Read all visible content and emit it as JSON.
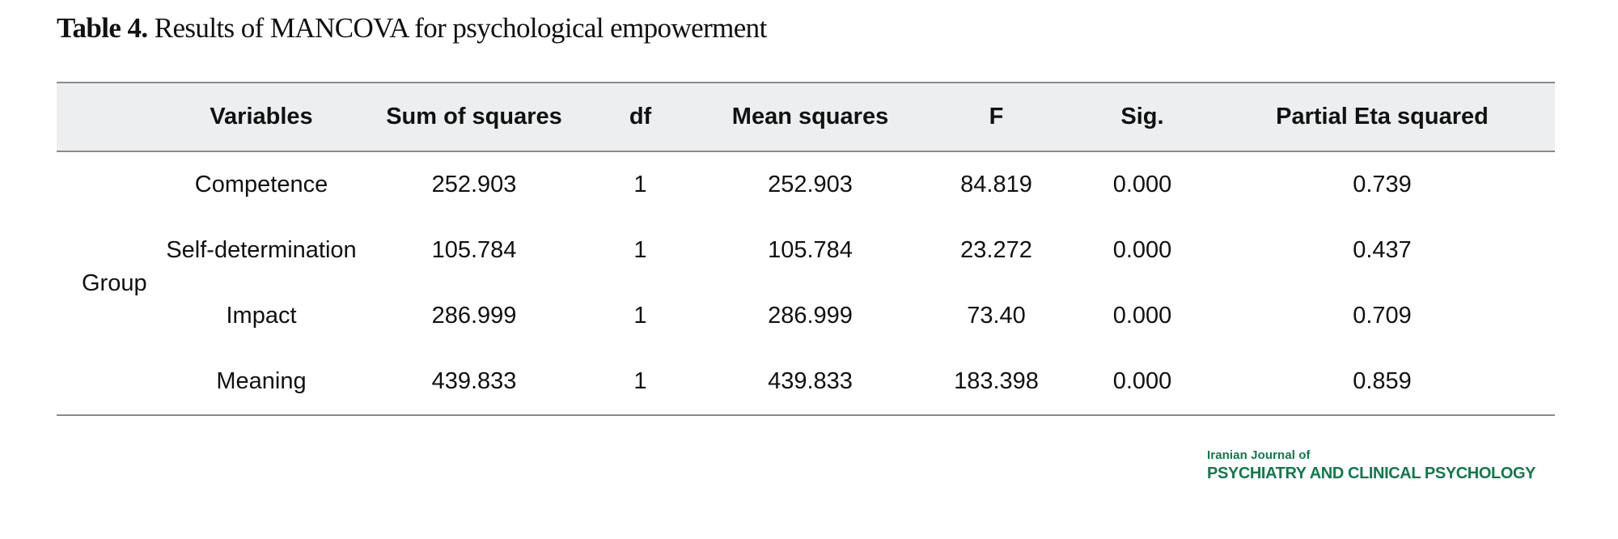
{
  "caption": {
    "label": "Table 4.",
    "text": " Results of MANCOVA for psychological empowerment"
  },
  "table": {
    "headers": [
      "",
      "Variables",
      "Sum of squares",
      "df",
      "Mean squares",
      "F",
      "Sig.",
      "Partial Eta squared"
    ],
    "group_label": "Group",
    "rows": [
      [
        "Competence",
        "252.903",
        "1",
        "252.903",
        "84.819",
        "0.000",
        "0.739"
      ],
      [
        "Self-determination",
        "105.784",
        "1",
        "105.784",
        "23.272",
        "0.000",
        "0.437"
      ],
      [
        "Impact",
        "286.999",
        "1",
        "286.999",
        "73.40",
        "0.000",
        "0.709"
      ],
      [
        "Meaning",
        "439.833",
        "1",
        "439.833",
        "183.398",
        "0.000",
        "0.859"
      ]
    ]
  },
  "journal": {
    "line1": "Iranian Journal of",
    "line2": "PSYCHIATRY AND CLINICAL PSYCHOLOGY",
    "color": "#0f7a4a"
  }
}
